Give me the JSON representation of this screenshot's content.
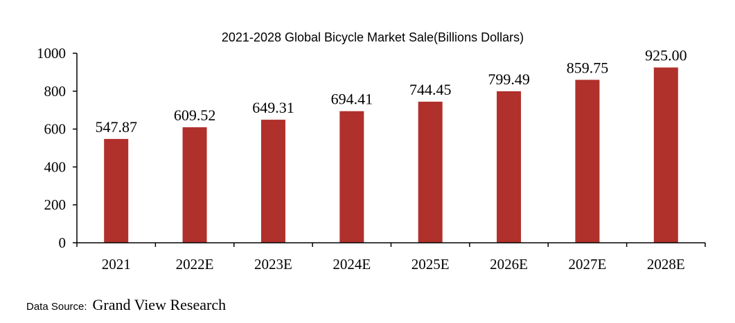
{
  "chart_data": {
    "type": "bar",
    "title": "2021-2028 Global Bicycle Market Sale(Billions Dollars)",
    "categories": [
      "2021",
      "2022E",
      "2023E",
      "2024E",
      "2025E",
      "2026E",
      "2027E",
      "2028E"
    ],
    "values": [
      547.87,
      609.52,
      649.31,
      694.41,
      744.45,
      799.49,
      859.75,
      925.0
    ],
    "data_labels": [
      "547.87",
      "609.52",
      "649.31",
      "694.41",
      "744.45",
      "799.49",
      "859.75",
      "925.00"
    ],
    "ylim": [
      0,
      1000
    ],
    "yticks": [
      0,
      200,
      400,
      600,
      800,
      1000
    ],
    "xlabel": "",
    "ylabel": "",
    "grid": false,
    "bar_color": "#B0302C"
  },
  "source": {
    "label": "Data Source:",
    "value": "Grand View Research"
  }
}
